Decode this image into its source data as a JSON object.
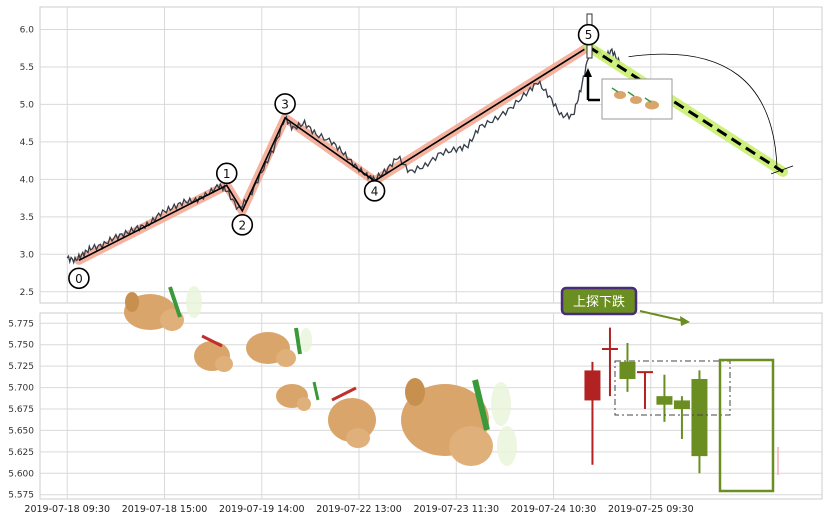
{
  "chart_data": [
    {
      "type": "line",
      "panel": "price",
      "ylim": [
        2.35,
        6.3
      ],
      "yticks": [
        2.5,
        3.0,
        3.5,
        4.0,
        4.5,
        5.0,
        5.5,
        6.0
      ],
      "ytick_labels": [
        "2.5",
        "3.0",
        "3.5",
        "4.0",
        "4.5",
        "5.0",
        "5.5",
        "6.0"
      ],
      "grid": true,
      "price_series": [
        {
          "x": 0.0,
          "y": 2.95
        },
        {
          "x": 0.02,
          "y": 2.92
        },
        {
          "x": 0.04,
          "y": 3.0
        },
        {
          "x": 0.06,
          "y": 3.08
        },
        {
          "x": 0.09,
          "y": 3.12
        },
        {
          "x": 0.12,
          "y": 3.22
        },
        {
          "x": 0.15,
          "y": 3.28
        },
        {
          "x": 0.18,
          "y": 3.35
        },
        {
          "x": 0.21,
          "y": 3.4
        },
        {
          "x": 0.24,
          "y": 3.55
        },
        {
          "x": 0.27,
          "y": 3.62
        },
        {
          "x": 0.3,
          "y": 3.7
        },
        {
          "x": 0.33,
          "y": 3.72
        },
        {
          "x": 0.36,
          "y": 3.8
        },
        {
          "x": 0.39,
          "y": 3.92
        },
        {
          "x": 0.41,
          "y": 3.85
        },
        {
          "x": 0.44,
          "y": 3.6
        },
        {
          "x": 0.47,
          "y": 3.78
        },
        {
          "x": 0.5,
          "y": 4.1
        },
        {
          "x": 0.53,
          "y": 4.4
        },
        {
          "x": 0.56,
          "y": 4.82
        },
        {
          "x": 0.58,
          "y": 4.68
        },
        {
          "x": 0.61,
          "y": 4.75
        },
        {
          "x": 0.64,
          "y": 4.6
        },
        {
          "x": 0.68,
          "y": 4.5
        },
        {
          "x": 0.71,
          "y": 4.35
        },
        {
          "x": 0.74,
          "y": 4.18
        },
        {
          "x": 0.77,
          "y": 4.05
        },
        {
          "x": 0.79,
          "y": 4.0
        },
        {
          "x": 0.82,
          "y": 4.12
        },
        {
          "x": 0.85,
          "y": 4.3
        },
        {
          "x": 0.88,
          "y": 4.1
        },
        {
          "x": 0.92,
          "y": 4.18
        },
        {
          "x": 0.96,
          "y": 4.35
        },
        {
          "x": 1.0,
          "y": 4.4
        },
        {
          "x": 1.03,
          "y": 4.45
        },
        {
          "x": 1.06,
          "y": 4.7
        },
        {
          "x": 1.1,
          "y": 4.8
        },
        {
          "x": 1.14,
          "y": 4.95
        },
        {
          "x": 1.18,
          "y": 5.15
        },
        {
          "x": 1.21,
          "y": 5.3
        },
        {
          "x": 1.24,
          "y": 5.1
        },
        {
          "x": 1.27,
          "y": 4.85
        },
        {
          "x": 1.3,
          "y": 4.85
        },
        {
          "x": 1.32,
          "y": 5.2
        },
        {
          "x": 1.34,
          "y": 5.65
        },
        {
          "x": 1.36,
          "y": 5.75
        },
        {
          "x": 1.38,
          "y": 5.62
        },
        {
          "x": 1.4,
          "y": 5.72
        },
        {
          "x": 1.42,
          "y": 5.55
        }
      ],
      "wave_labels": [
        {
          "label": "0",
          "x": 0.03,
          "y": 2.92
        },
        {
          "label": "1",
          "x": 0.41,
          "y": 3.92
        },
        {
          "label": "2",
          "x": 0.45,
          "y": 3.58
        },
        {
          "label": "3",
          "x": 0.56,
          "y": 4.82
        },
        {
          "label": "4",
          "x": 0.79,
          "y": 3.98
        },
        {
          "label": "5",
          "x": 1.34,
          "y": 5.77
        }
      ],
      "projection": [
        {
          "x": 1.34,
          "y": 5.77
        },
        {
          "x": 1.84,
          "y": 4.1
        }
      ],
      "x_range": [
        -0.07,
        1.94
      ]
    },
    {
      "type": "bar",
      "panel": "candles",
      "ylim": [
        5.57,
        5.787
      ],
      "yticks": [
        5.575,
        5.6,
        5.625,
        5.65,
        5.675,
        5.7,
        5.725,
        5.75,
        5.775
      ],
      "ytick_labels": [
        "5.575",
        "5.600",
        "5.625",
        "5.650",
        "5.675",
        "5.700",
        "5.725",
        "5.750",
        "5.775"
      ],
      "grid": true,
      "candles": [
        {
          "x": 1.35,
          "open": 5.685,
          "close": 5.72,
          "high": 5.73,
          "low": 5.61,
          "color": "#b22222"
        },
        {
          "x": 1.395,
          "open": 5.745,
          "close": 5.745,
          "high": 5.77,
          "low": 5.69,
          "color": "#b22222"
        },
        {
          "x": 1.44,
          "open": 5.71,
          "close": 5.73,
          "high": 5.752,
          "low": 5.695,
          "color": "#6b8e23"
        },
        {
          "x": 1.485,
          "open": 5.718,
          "close": 5.718,
          "high": 5.718,
          "low": 5.675,
          "color": "#b22222"
        },
        {
          "x": 1.535,
          "open": 5.68,
          "close": 5.69,
          "high": 5.715,
          "low": 5.66,
          "color": "#6b8e23"
        },
        {
          "x": 1.58,
          "open": 5.675,
          "close": 5.685,
          "high": 5.69,
          "low": 5.64,
          "color": "#6b8e23"
        },
        {
          "x": 1.625,
          "open": 5.62,
          "close": 5.71,
          "high": 5.72,
          "low": 5.6,
          "color": "#6b8e23"
        }
      ],
      "x_range": [
        -0.07,
        1.94
      ]
    }
  ],
  "x_axis": {
    "tick_labels": [
      "2019-07-18 09:30",
      "2019-07-18 15:00",
      "2019-07-19 14:00",
      "2019-07-22 13:00",
      "2019-07-23 11:30",
      "2019-07-24 10:30",
      "2019-07-25 09:30"
    ],
    "tick_positions": [
      0.0,
      0.25,
      0.5,
      0.75,
      1.0,
      1.25,
      1.5
    ]
  },
  "annotation": {
    "label": "上探下跌",
    "color": "#6b8e23",
    "border": "#4b2b7a"
  },
  "colors": {
    "price_line": "#333c48",
    "wave_band": "#f3a58d",
    "wave_line": "#000000",
    "projection_band": "#c8f06e",
    "grid": "#d9d9d9"
  }
}
